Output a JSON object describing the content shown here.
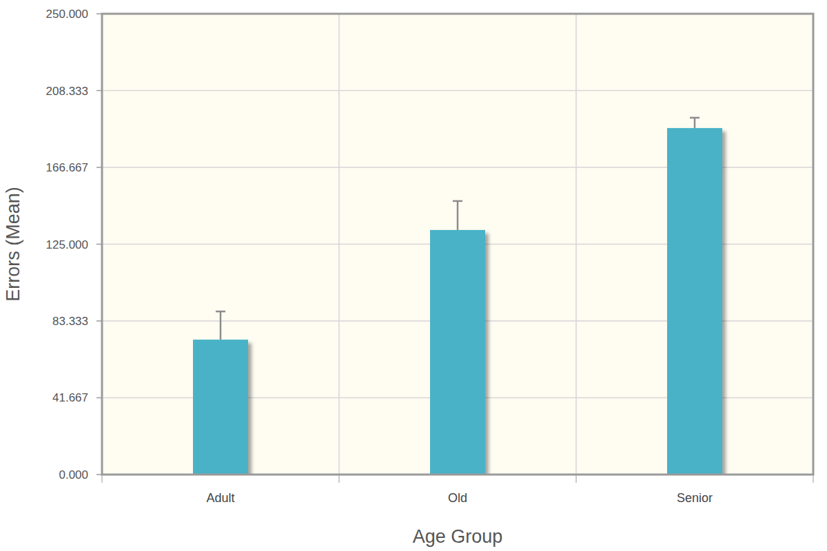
{
  "chart_data": {
    "type": "bar",
    "x_label": "Age Group",
    "y_label": "Errors (Mean)",
    "categories": [
      "Adult",
      "Old",
      "Senior"
    ],
    "values": [
      73.2,
      132.7,
      188.0
    ],
    "errors": [
      15.3,
      15.7,
      5.6
    ],
    "color": "#4ab2c7",
    "ylim": [
      0,
      250
    ],
    "yticks": [
      {
        "value": 0,
        "label": "0.000"
      },
      {
        "value": 41.667,
        "label": "41.667"
      },
      {
        "value": 83.333,
        "label": "83.333"
      },
      {
        "value": 125,
        "label": "125.000"
      },
      {
        "value": 166.667,
        "label": "166.667"
      },
      {
        "value": 208.333,
        "label": "208.333"
      },
      {
        "value": 250,
        "label": "250.000"
      }
    ],
    "grid": true
  }
}
